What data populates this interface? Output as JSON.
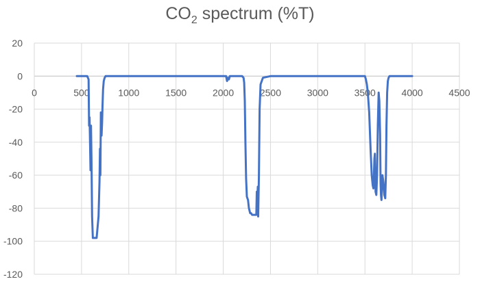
{
  "chart_data": {
    "type": "line",
    "title_main": "CO",
    "title_sub": "2",
    "title_rest": " spectrum (%T)",
    "xlim": [
      0,
      4500
    ],
    "ylim": [
      -120,
      20
    ],
    "x_ticks": [
      0,
      500,
      1000,
      1500,
      2000,
      2500,
      3000,
      3500,
      4000,
      4500
    ],
    "y_ticks": [
      20,
      0,
      -20,
      -40,
      -60,
      -80,
      -100,
      -120
    ],
    "grid": true,
    "line_color": "#4472C4",
    "series": [
      {
        "x": [
          450,
          560,
          575,
          580,
          585,
          590,
          595,
          600,
          605,
          612,
          620,
          630,
          645,
          660,
          680,
          690,
          695,
          700,
          705,
          712,
          718,
          722,
          728,
          735,
          745,
          755,
          770,
          800,
          900,
          1000,
          1100,
          1500,
          1900,
          2030,
          2040,
          2050,
          2060,
          2070,
          2080,
          2150,
          2200,
          2215,
          2222,
          2228,
          2235,
          2242,
          2250,
          2262,
          2272,
          2285,
          2295,
          2305,
          2320,
          2330,
          2342,
          2350,
          2355,
          2358,
          2362,
          2366,
          2370,
          2378,
          2385,
          2395,
          2420,
          2500,
          3000,
          3500,
          3510,
          3520,
          3530,
          3545,
          3560,
          3572,
          3582,
          3590,
          3596,
          3600,
          3605,
          3612,
          3620,
          3628,
          3636,
          3645,
          3652,
          3660,
          3665,
          3670,
          3675,
          3685,
          3695,
          3705,
          3715,
          3722,
          3728,
          3735,
          3742,
          3750,
          3760,
          3775,
          3800,
          4000
        ],
        "y": [
          0,
          0,
          -2,
          -30,
          -25,
          -40,
          -57,
          -30,
          -50,
          -85,
          -98,
          -98,
          -98,
          -98,
          -85,
          -64,
          -44,
          -60,
          -22,
          -36,
          -28,
          -18,
          -8,
          -3,
          -1,
          0,
          0,
          0,
          0,
          0,
          0,
          0,
          0,
          0,
          -3,
          -1,
          -2,
          0,
          0,
          0,
          0,
          -1,
          -4,
          -15,
          -40,
          -62,
          -73,
          -75,
          -80,
          -83,
          -83,
          -84,
          -84,
          -84,
          -84,
          -84,
          -70,
          -75,
          -73,
          -67,
          -85,
          -60,
          -20,
          -5,
          -1,
          0,
          0,
          0,
          -2,
          -5,
          -10,
          -22,
          -45,
          -60,
          -66,
          -68,
          -58,
          -50,
          -47,
          -70,
          -72,
          -60,
          -30,
          -10,
          -15,
          -35,
          -65,
          -72,
          -75,
          -60,
          -64,
          -72,
          -74,
          -60,
          -30,
          -10,
          -3,
          -1,
          0,
          0,
          0,
          0
        ]
      }
    ]
  }
}
